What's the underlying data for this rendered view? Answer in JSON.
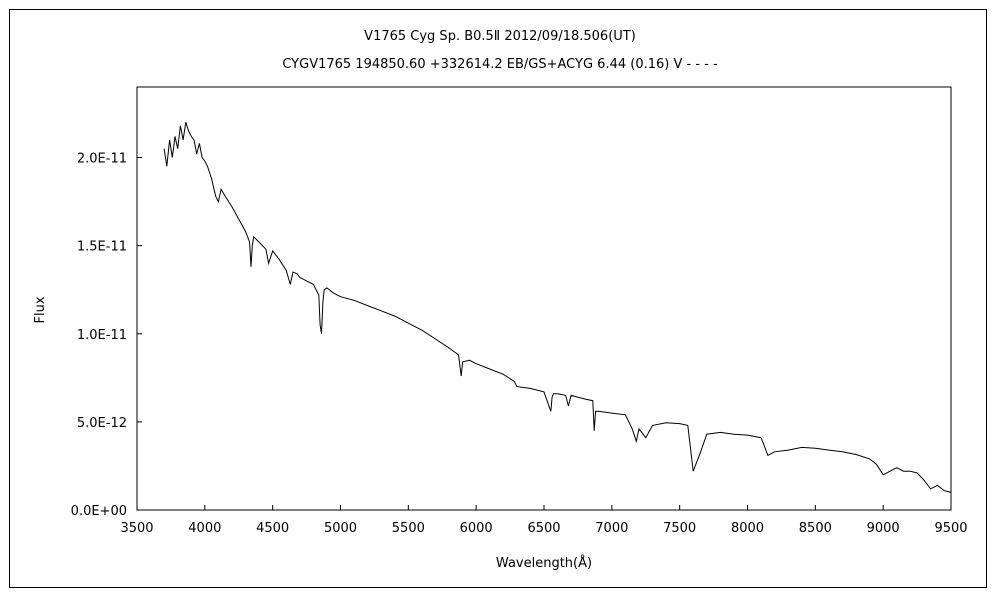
{
  "chart_data": {
    "type": "line",
    "title": "V1765 Cyg     Sp. B0.5Ⅱ     2012/09/18.506(UT)",
    "subtitle": "CYGV1765 194850.60 +332614.2 EB/GS+ACYG 6.44 (0.16) V - - - -",
    "xlabel": "Wavelength(Å)",
    "ylabel": "Flux",
    "xlim": [
      3500,
      9500
    ],
    "ylim": [
      0,
      2.4e-11
    ],
    "x_ticks": [
      3500,
      4000,
      4500,
      5000,
      5500,
      6000,
      6500,
      7000,
      7500,
      8000,
      8500,
      9000,
      9500
    ],
    "y_ticks": [
      0,
      5e-12,
      1e-11,
      1.5e-11,
      2e-11
    ],
    "x_tick_labels": [
      "3500",
      "4000",
      "4500",
      "5000",
      "5500",
      "6000",
      "6500",
      "7000",
      "7500",
      "8000",
      "8500",
      "9000",
      "9500"
    ],
    "y_tick_labels": [
      "0.0E+00",
      "5.0E-12",
      "1.0E-11",
      "1.5E-11",
      "2.0E-11"
    ],
    "grid": false,
    "line_color": "#000000",
    "series": [
      {
        "x": [
          3700,
          3720,
          3740,
          3760,
          3780,
          3800,
          3820,
          3840,
          3860,
          3880,
          3900,
          3920,
          3940,
          3960,
          3980,
          4000,
          4020,
          4050,
          4080,
          4100,
          4120,
          4150,
          4200,
          4250,
          4300,
          4330,
          4340,
          4350,
          4360,
          4400,
          4450,
          4470,
          4500,
          4550,
          4600,
          4630,
          4650,
          4680,
          4700,
          4750,
          4800,
          4840,
          4850,
          4860,
          4870,
          4880,
          4900,
          4950,
          5000,
          5100,
          5200,
          5300,
          5400,
          5500,
          5600,
          5700,
          5800,
          5870,
          5890,
          5900,
          5950,
          6000,
          6100,
          6200,
          6280,
          6300,
          6400,
          6500,
          6550,
          6560,
          6570,
          6600,
          6660,
          6680,
          6700,
          6800,
          6860,
          6870,
          6880,
          6900,
          7000,
          7100,
          7150,
          7180,
          7200,
          7250,
          7300,
          7400,
          7500,
          7560,
          7600,
          7620,
          7650,
          7700,
          7800,
          7900,
          8000,
          8100,
          8150,
          8200,
          8300,
          8400,
          8500,
          8600,
          8700,
          8800,
          8900,
          8950,
          9000,
          9050,
          9100,
          9150,
          9200,
          9250,
          9300,
          9350,
          9400,
          9450,
          9500
        ],
        "y": [
          2.05e-11,
          1.95e-11,
          2.1e-11,
          2e-11,
          2.12e-11,
          2.05e-11,
          2.18e-11,
          2.1e-11,
          2.2e-11,
          2.15e-11,
          2.12e-11,
          2.1e-11,
          2.02e-11,
          2.08e-11,
          2e-11,
          1.98e-11,
          1.95e-11,
          1.88e-11,
          1.78e-11,
          1.75e-11,
          1.82e-11,
          1.78e-11,
          1.72e-11,
          1.65e-11,
          1.58e-11,
          1.52e-11,
          1.38e-11,
          1.5e-11,
          1.55e-11,
          1.52e-11,
          1.48e-11,
          1.4e-11,
          1.47e-11,
          1.42e-11,
          1.36e-11,
          1.28e-11,
          1.35e-11,
          1.34e-11,
          1.32e-11,
          1.3e-11,
          1.28e-11,
          1.22e-11,
          1.05e-11,
          1e-11,
          1.18e-11,
          1.25e-11,
          1.26e-11,
          1.23e-11,
          1.21e-11,
          1.19e-11,
          1.16e-11,
          1.13e-11,
          1.1e-11,
          1.06e-11,
          1.02e-11,
          9.7e-12,
          9.2e-12,
          8.8e-12,
          7.6e-12,
          8.4e-12,
          8.5e-12,
          8.3e-12,
          8e-12,
          7.7e-12,
          7.3e-12,
          7e-12,
          6.9e-12,
          6.7e-12,
          5.6e-12,
          6.4e-12,
          6.6e-12,
          6.6e-12,
          6.5e-12,
          5.9e-12,
          6.5e-12,
          6.3e-12,
          6.2e-12,
          4.5e-12,
          5.6e-12,
          5.6e-12,
          5.5e-12,
          5.4e-12,
          4.6e-12,
          3.9e-12,
          4.6e-12,
          4.1e-12,
          4.8e-12,
          4.95e-12,
          4.9e-12,
          4.8e-12,
          2.2e-12,
          2.6e-12,
          3.2e-12,
          4.3e-12,
          4.4e-12,
          4.3e-12,
          4.25e-12,
          4.1e-12,
          3.1e-12,
          3.3e-12,
          3.4e-12,
          3.55e-12,
          3.5e-12,
          3.4e-12,
          3.3e-12,
          3.15e-12,
          2.9e-12,
          2.6e-12,
          2e-12,
          2.2e-12,
          2.4e-12,
          2.2e-12,
          2.2e-12,
          2.1e-12,
          1.7e-12,
          1.2e-12,
          1.4e-12,
          1.1e-12,
          1e-12
        ]
      }
    ]
  }
}
